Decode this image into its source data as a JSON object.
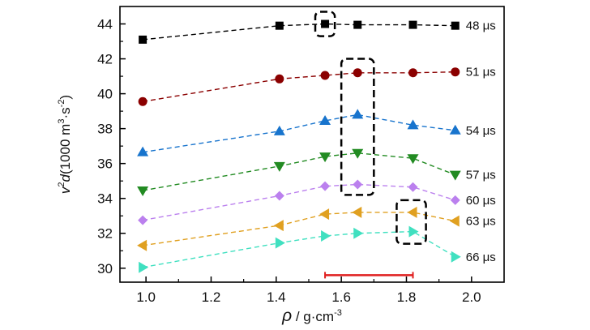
{
  "chart_data": {
    "type": "line",
    "xlabel": {
      "symbol": "ρ",
      "sep": " / ",
      "unit": "g·cm",
      "unit_sup": "-3"
    },
    "ylabel": {
      "v": "v",
      "v_sup": "2",
      "d": "d",
      "unit_open": "(1000 m",
      "unit_sup1": "3",
      "mid": "·s",
      "unit_sup2": "-2",
      "close": ")"
    },
    "xlim": [
      0.92,
      2.1
    ],
    "ylim": [
      29.2,
      45
    ],
    "xticks": [
      1.0,
      1.2,
      1.4,
      1.6,
      1.8,
      2.0
    ],
    "xtick_labels": [
      "1.0",
      "1.2",
      "1.4",
      "1.6",
      "1.8",
      "2.0"
    ],
    "yticks": [
      30,
      32,
      34,
      36,
      38,
      40,
      42,
      44
    ],
    "ytick_labels": [
      "30",
      "32",
      "34",
      "36",
      "38",
      "40",
      "42",
      "44"
    ],
    "grid": false,
    "series": [
      {
        "name": "48 μs",
        "marker": "square",
        "color": "#000000",
        "x": [
          0.99,
          1.41,
          1.55,
          1.65,
          1.82,
          1.95
        ],
        "y": [
          43.1,
          43.9,
          44.0,
          43.95,
          43.95,
          43.9
        ]
      },
      {
        "name": "51 μs",
        "marker": "circle",
        "color": "#8b0000",
        "x": [
          0.99,
          1.41,
          1.55,
          1.65,
          1.82,
          1.95
        ],
        "y": [
          39.55,
          40.85,
          41.05,
          41.2,
          41.2,
          41.25
        ]
      },
      {
        "name": "54 μs",
        "marker": "triangle-up",
        "color": "#1874cd",
        "x": [
          0.99,
          1.41,
          1.55,
          1.65,
          1.82,
          1.95
        ],
        "y": [
          36.65,
          37.85,
          38.45,
          38.8,
          38.2,
          37.9
        ]
      },
      {
        "name": "57 μs",
        "marker": "triangle-down",
        "color": "#228b22",
        "x": [
          0.99,
          1.41,
          1.55,
          1.65,
          1.82,
          1.95
        ],
        "y": [
          34.45,
          35.85,
          36.4,
          36.6,
          36.3,
          35.35
        ]
      },
      {
        "name": "60 μs",
        "marker": "diamond",
        "color": "#bb80ee",
        "x": [
          0.99,
          1.41,
          1.55,
          1.65,
          1.82,
          1.95
        ],
        "y": [
          32.75,
          34.15,
          34.7,
          34.8,
          34.65,
          33.9
        ]
      },
      {
        "name": "63 μs",
        "marker": "triangle-left",
        "color": "#e0a020",
        "x": [
          0.99,
          1.41,
          1.55,
          1.65,
          1.82,
          1.95
        ],
        "y": [
          31.3,
          32.45,
          33.1,
          33.2,
          33.2,
          32.7
        ]
      },
      {
        "name": "66 μs",
        "marker": "triangle-right",
        "color": "#40e0c0",
        "x": [
          0.99,
          1.41,
          1.55,
          1.65,
          1.82,
          1.95
        ],
        "y": [
          30.05,
          31.45,
          31.85,
          32.0,
          32.1,
          30.65
        ]
      }
    ],
    "highlight_boxes": [
      {
        "x": [
          1.52,
          1.58
        ],
        "y": [
          43.3,
          44.7
        ],
        "color": "#000000"
      },
      {
        "x": [
          1.6,
          1.7
        ],
        "y": [
          34.2,
          42.0
        ],
        "color": "#000000"
      },
      {
        "x": [
          1.77,
          1.86
        ],
        "y": [
          31.4,
          33.9
        ],
        "color": "#000000"
      }
    ],
    "range_bar": {
      "x": [
        1.55,
        1.82
      ],
      "y": 29.6,
      "color": "#e02020"
    }
  }
}
